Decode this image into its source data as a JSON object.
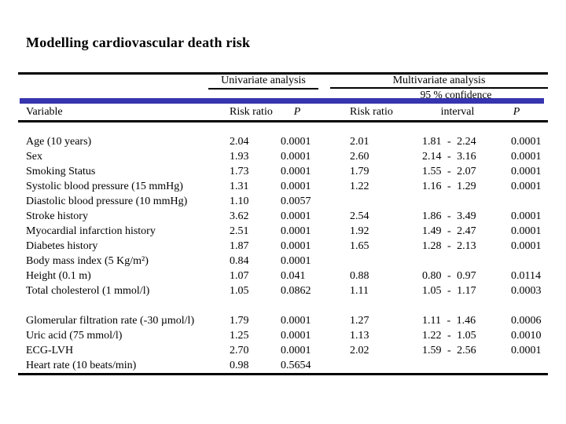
{
  "title": "Modelling cardiovascular death risk",
  "accent_bar_color": "#3734AF",
  "table": {
    "group_headers": {
      "univariate": "Univariate analysis",
      "multivariate": "Multivariate analysis"
    },
    "sub_header": {
      "confidence": "95 % confidence",
      "interval": "interval"
    },
    "columns": {
      "variable": "Variable",
      "uni_risk_ratio": "Risk ratio",
      "uni_p": "P",
      "multi_risk_ratio": "Risk ratio",
      "multi_p": "P"
    },
    "rows": [
      {
        "variable": "Age (10 years)",
        "uni_rr": "2.04",
        "uni_p": "0.0001",
        "multi_rr": "2.01",
        "ci": "1.81 - 2.24",
        "multi_p": "0.0001"
      },
      {
        "variable": "Sex",
        "uni_rr": "1.93",
        "uni_p": "0.0001",
        "multi_rr": "2.60",
        "ci": "2.14 - 3.16",
        "multi_p": "0.0001"
      },
      {
        "variable": "Smoking Status",
        "uni_rr": "1.73",
        "uni_p": "0.0001",
        "multi_rr": "1.79",
        "ci": "1.55 - 2.07",
        "multi_p": "0.0001"
      },
      {
        "variable": "Systolic blood pressure (15 mmHg)",
        "uni_rr": "1.31",
        "uni_p": "0.0001",
        "multi_rr": "1.22",
        "ci": "1.16 - 1.29",
        "multi_p": "0.0001"
      },
      {
        "variable": "Diastolic blood pressure (10 mmHg)",
        "uni_rr": "1.10",
        "uni_p": "0.0057",
        "multi_rr": "",
        "ci": "",
        "multi_p": ""
      },
      {
        "variable": "Stroke history",
        "uni_rr": "3.62",
        "uni_p": "0.0001",
        "multi_rr": "2.54",
        "ci": "1.86 - 3.49",
        "multi_p": "0.0001"
      },
      {
        "variable": "Myocardial infarction history",
        "uni_rr": "2.51",
        "uni_p": "0.0001",
        "multi_rr": "1.92",
        "ci": "1.49 - 2.47",
        "multi_p": "0.0001"
      },
      {
        "variable": "Diabetes history",
        "uni_rr": "1.87",
        "uni_p": "0.0001",
        "multi_rr": "1.65",
        "ci": "1.28 - 2.13",
        "multi_p": "0.0001"
      },
      {
        "variable": "Body mass index (5 Kg/m²)",
        "uni_rr": "0.84",
        "uni_p": "0.0001",
        "multi_rr": "",
        "ci": "",
        "multi_p": ""
      },
      {
        "variable": "Height (0.1 m)",
        "uni_rr": "1.07",
        "uni_p": "0.041",
        "multi_rr": "0.88",
        "ci": "0.80 - 0.97",
        "multi_p": "0.0114"
      },
      {
        "variable": "Total cholesterol (1 mmol/l)",
        "uni_rr": "1.05",
        "uni_p": "0.0862",
        "multi_rr": "1.11",
        "ci": "1.05 - 1.17",
        "multi_p": "0.0003"
      },
      {
        "variable": "Glomerular filtration rate (-30 µmol/l)",
        "uni_rr": "1.79",
        "uni_p": "0.0001",
        "multi_rr": "1.27",
        "ci": "1.11 - 1.46",
        "multi_p": "0.0006",
        "gap_before": true
      },
      {
        "variable": "Uric acid (75 mmol/l)",
        "uni_rr": "1.25",
        "uni_p": "0.0001",
        "multi_rr": "1.13",
        "ci": "1.22 - 1.05",
        "multi_p": "0.0010"
      },
      {
        "variable": "ECG-LVH",
        "uni_rr": "2.70",
        "uni_p": "0.0001",
        "multi_rr": "2.02",
        "ci": "1.59 - 2.56",
        "multi_p": "0.0001"
      },
      {
        "variable": "Heart rate (10 beats/min)",
        "uni_rr": "0.98",
        "uni_p": "0.5654",
        "multi_rr": "",
        "ci": "",
        "multi_p": ""
      }
    ]
  }
}
